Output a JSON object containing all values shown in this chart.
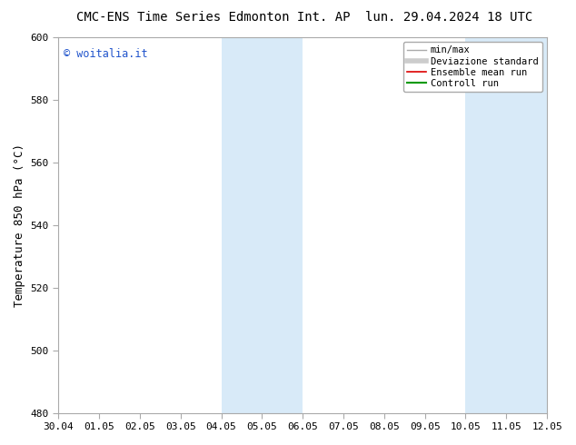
{
  "title_left": "CMC-ENS Time Series Edmonton Int. AP",
  "title_right": "lun. 29.04.2024 18 UTC",
  "ylabel": "Temperature 850 hPa (°C)",
  "ylim": [
    480,
    600
  ],
  "yticks": [
    480,
    500,
    520,
    540,
    560,
    580,
    600
  ],
  "x_labels": [
    "30.04",
    "01.05",
    "02.05",
    "03.05",
    "04.05",
    "05.05",
    "06.05",
    "07.05",
    "08.05",
    "09.05",
    "10.05",
    "11.05",
    "12.05"
  ],
  "shaded_regions": [
    {
      "xstart": 4,
      "xend": 6,
      "color": "#d8eaf8"
    },
    {
      "xstart": 10,
      "xend": 12,
      "color": "#d8eaf8"
    }
  ],
  "watermark": "© woitalia.it",
  "watermark_color": "#2255cc",
  "bg_color": "#ffffff",
  "frame_color": "#aaaaaa",
  "legend_entries": [
    {
      "label": "min/max",
      "color": "#aaaaaa",
      "lw": 1.0
    },
    {
      "label": "Deviazione standard",
      "color": "#cccccc",
      "lw": 4.0
    },
    {
      "label": "Ensemble mean run",
      "color": "#dd0000",
      "lw": 1.2
    },
    {
      "label": "Controll run",
      "color": "#009900",
      "lw": 1.5
    }
  ],
  "title_fontsize": 10,
  "ylabel_fontsize": 9,
  "tick_fontsize": 8,
  "legend_fontsize": 7.5,
  "watermark_fontsize": 8.5
}
